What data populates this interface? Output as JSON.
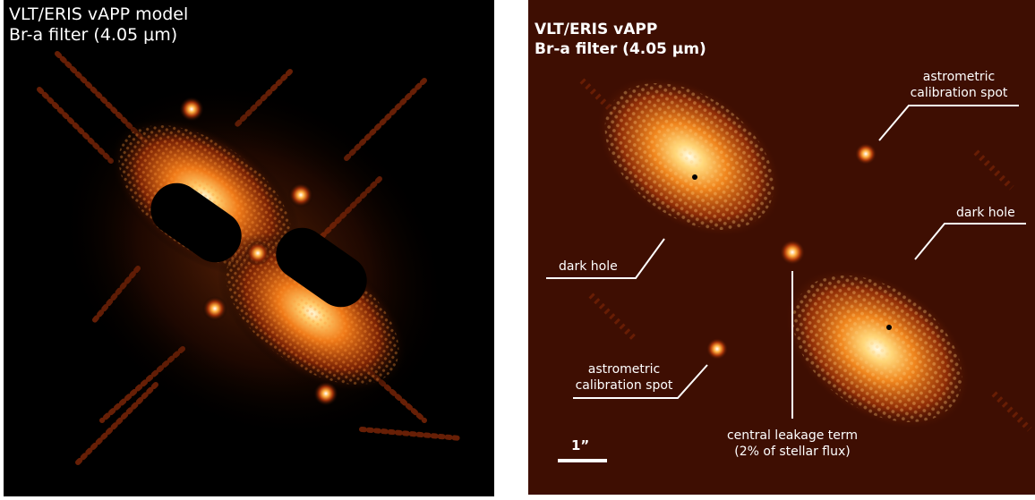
{
  "left_panel": {
    "title_line1": "VLT/ERIS vAPP model",
    "title_line2": "Br-a filter (4.05 μm)"
  },
  "right_panel": {
    "title_line1": "VLT/ERIS vAPP",
    "title_line2": "Br-a filter (4.05 μm)",
    "annotations": {
      "astrometric_top_line1": "astrometric",
      "astrometric_top_line2": "calibration spot",
      "dark_hole_right": "dark hole",
      "dark_hole_left": "dark hole",
      "astrometric_bottom_line1": "astrometric",
      "astrometric_bottom_line2": "calibration spot",
      "central_leakage_line1": "central leakage term",
      "central_leakage_line2": "(2% of stellar flux)"
    },
    "scale_bar_label": "1”"
  },
  "colors": {
    "background_left": "#000000",
    "background_right": "#3e0e02",
    "psf_core": "#fff6d8",
    "psf_glow": "#ff8a1e",
    "psf_halo": "#8a2a05",
    "text": "#ffffff"
  }
}
